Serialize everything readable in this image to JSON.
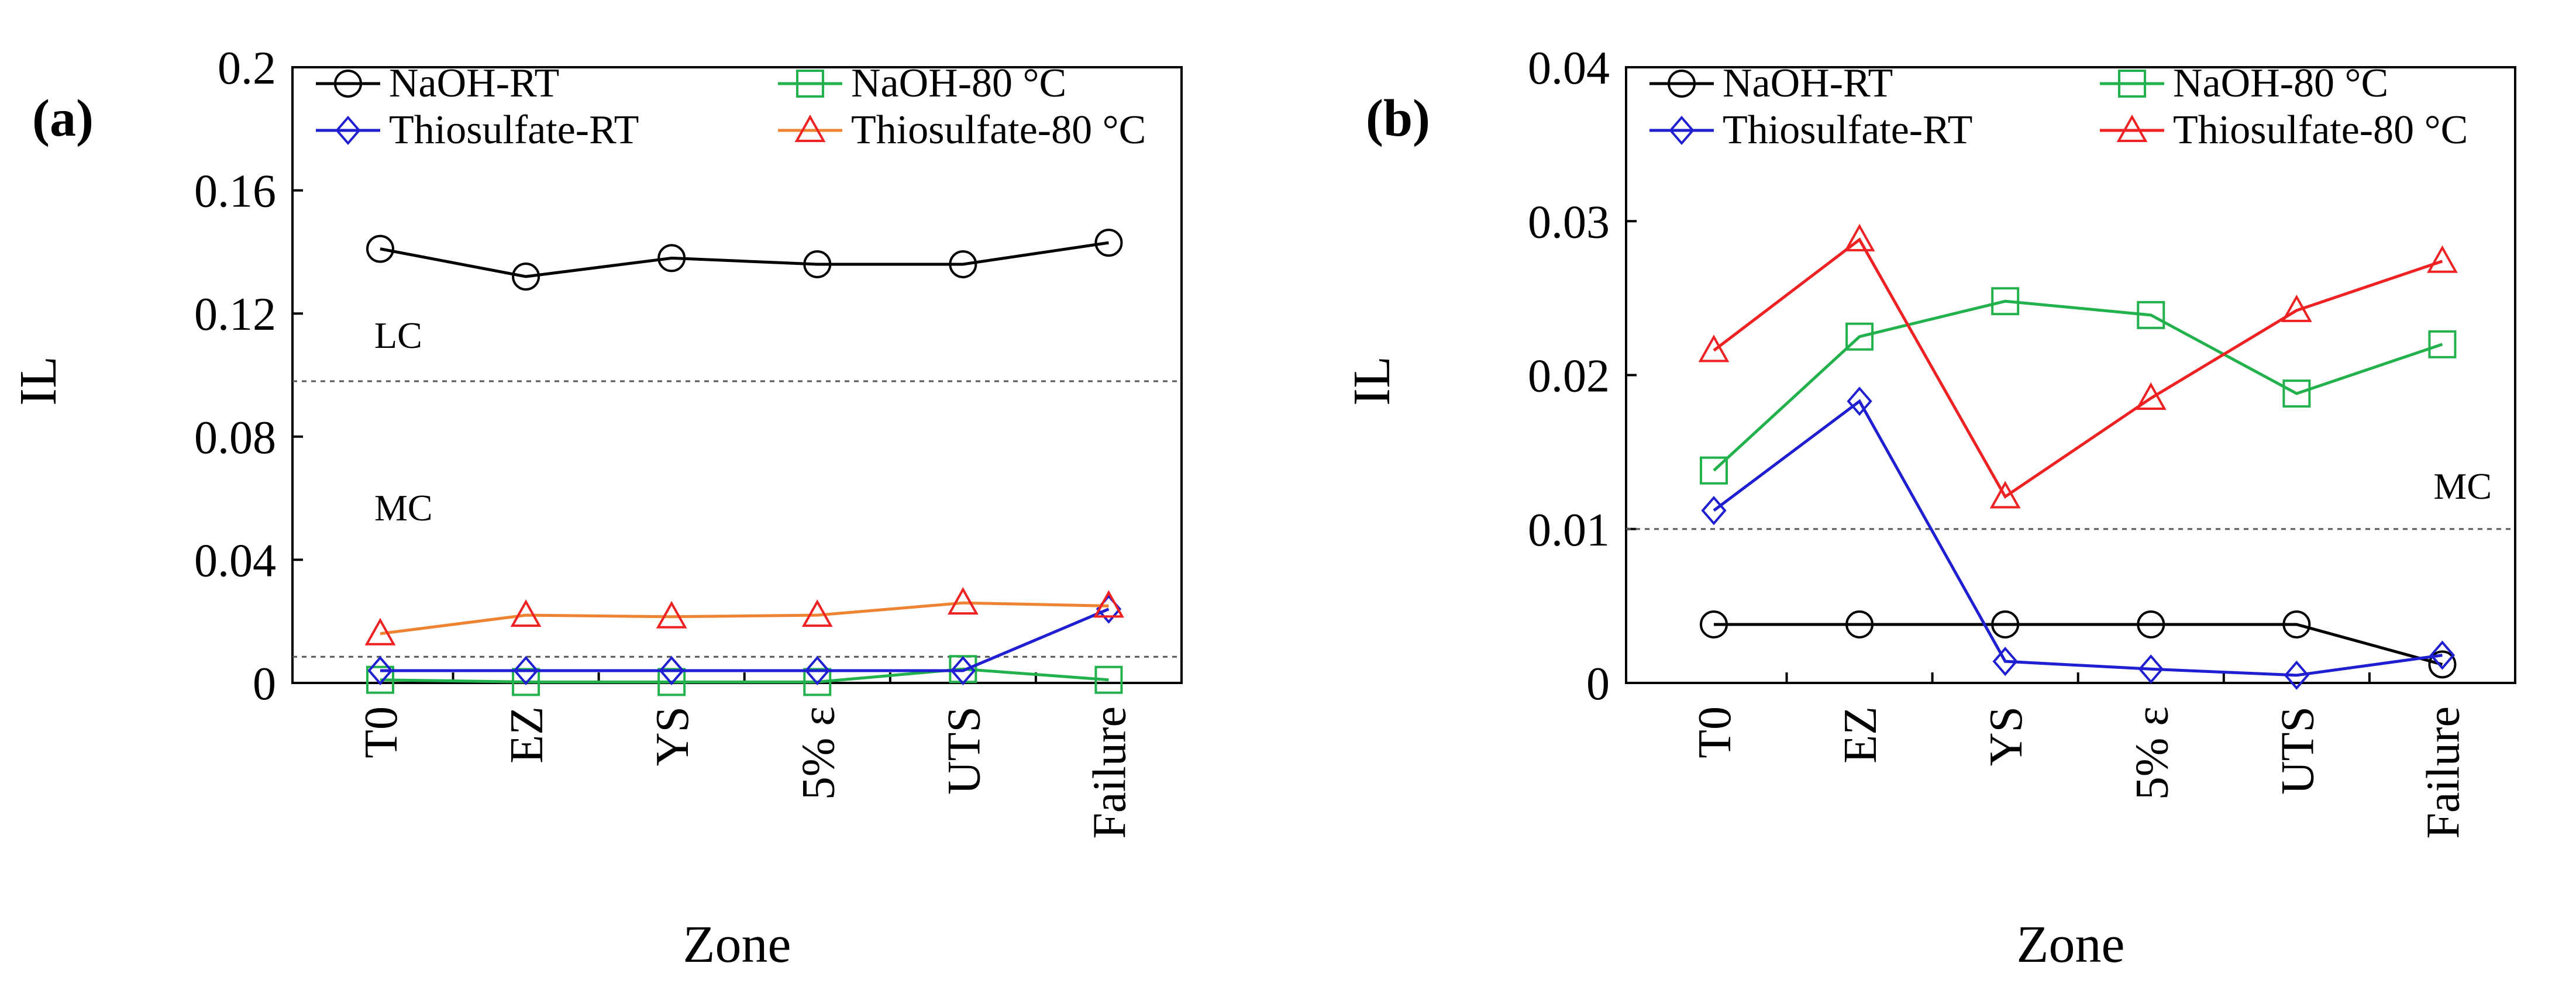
{
  "chart_data": [
    {
      "type": "line",
      "panel_label": "(a)",
      "xlabel": "Zone",
      "ylabel": "IL",
      "categories": [
        "T0",
        "EZ",
        "YS",
        "5% ε",
        "UTS",
        "Failure"
      ],
      "ylim": [
        0,
        0.2
      ],
      "yticks": [
        0,
        0.04,
        0.08,
        0.12,
        0.16,
        0.2
      ],
      "ytick_labels": [
        "0",
        "0.04",
        "0.08",
        "0.12",
        "0.16",
        "0.2"
      ],
      "reference_lines": [
        {
          "value": 0.098
        },
        {
          "value": 0.0085
        }
      ],
      "region_labels": [
        {
          "text": "LC",
          "y": 0.113
        },
        {
          "text": "MC",
          "y": 0.057
        }
      ],
      "legend_rows": 2,
      "series": [
        {
          "name": "NaOH-RT",
          "color": "#000000",
          "marker": "circle",
          "marker_color": "#000000",
          "values": [
            0.141,
            0.132,
            0.138,
            0.136,
            0.136,
            0.143
          ]
        },
        {
          "name": "NaOH-80 °C",
          "color": "#22b14c",
          "marker": "square",
          "marker_color": "#22b14c",
          "values": [
            0.001,
            0.0003,
            0.0003,
            0.0003,
            0.0045,
            0.001
          ]
        },
        {
          "name": "Thiosulfate-RT",
          "color": "#1f1fd1",
          "marker": "diamond",
          "marker_color": "#1f1fd1",
          "values": [
            0.004,
            0.004,
            0.004,
            0.004,
            0.004,
            0.024
          ]
        },
        {
          "name": "Thiosulfate-80 °C",
          "color": "#ee8433",
          "marker": "triangle",
          "marker_color": "#ee2222",
          "values": [
            0.016,
            0.022,
            0.0215,
            0.022,
            0.026,
            0.025
          ]
        }
      ]
    },
    {
      "type": "line",
      "panel_label": "(b)",
      "xlabel": "Zone",
      "ylabel": "IL",
      "categories": [
        "T0",
        "EZ",
        "YS",
        "5% ε",
        "UTS",
        "Failure"
      ],
      "ylim": [
        0,
        0.04
      ],
      "yticks": [
        0,
        0.01,
        0.02,
        0.03,
        0.04
      ],
      "ytick_labels": [
        "0",
        "0.01",
        "0.02",
        "0.03",
        "0.04"
      ],
      "reference_lines": [
        {
          "value": 0.01
        }
      ],
      "region_labels": [
        {
          "text": "MC",
          "y": 0.0128
        }
      ],
      "legend_rows": 2,
      "series": [
        {
          "name": "NaOH-RT",
          "color": "#000000",
          "marker": "circle",
          "marker_color": "#000000",
          "values": [
            0.0038,
            0.0038,
            0.0038,
            0.0038,
            0.0038,
            0.0012
          ]
        },
        {
          "name": "NaOH-80 °C",
          "color": "#22b14c",
          "marker": "square",
          "marker_color": "#22b14c",
          "values": [
            0.0138,
            0.0225,
            0.0248,
            0.0239,
            0.0188,
            0.022
          ]
        },
        {
          "name": "Thiosulfate-RT",
          "color": "#1f1fd1",
          "marker": "diamond",
          "marker_color": "#1f1fd1",
          "values": [
            0.0112,
            0.0183,
            0.0014,
            0.0009,
            0.0005,
            0.0018
          ]
        },
        {
          "name": "Thiosulfate-80 °C",
          "color": "#ee2222",
          "marker": "triangle",
          "marker_color": "#ee2222",
          "values": [
            0.0216,
            0.0288,
            0.0121,
            0.0185,
            0.0242,
            0.0274
          ]
        }
      ]
    }
  ]
}
